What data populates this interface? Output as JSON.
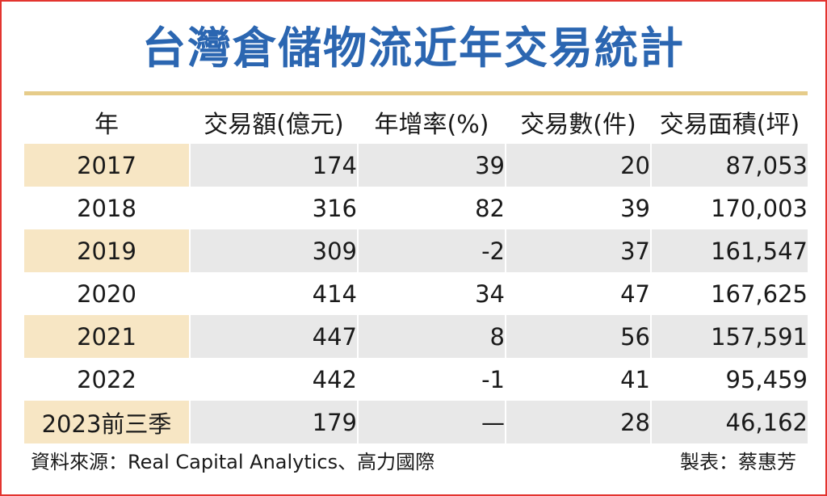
{
  "chart_data": {
    "type": "table",
    "title": "台灣倉儲物流近年交易統計",
    "columns": [
      "年",
      "交易額(億元)",
      "年增率(%)",
      "交易數(件)",
      "交易面積(坪)"
    ],
    "rows": [
      {
        "year": "2017",
        "amount": "174",
        "growth": "39",
        "count": "20",
        "area": "87,053"
      },
      {
        "year": "2018",
        "amount": "316",
        "growth": "82",
        "count": "39",
        "area": "170,003"
      },
      {
        "year": "2019",
        "amount": "309",
        "growth": "-2",
        "count": "37",
        "area": "161,547"
      },
      {
        "year": "2020",
        "amount": "414",
        "growth": "34",
        "count": "47",
        "area": "167,625"
      },
      {
        "year": "2021",
        "amount": "447",
        "growth": "8",
        "count": "56",
        "area": "157,591"
      },
      {
        "year": "2022",
        "amount": "442",
        "growth": "-1",
        "count": "41",
        "area": "95,459"
      },
      {
        "year": "2023前三季",
        "amount": "179",
        "growth": "—",
        "count": "28",
        "area": "46,162"
      }
    ]
  },
  "footer": {
    "source": "資料來源：Real Capital Analytics、高力國際",
    "maker": "製表：蔡惠芳"
  },
  "colors": {
    "title": "#2b66b1",
    "frame": "#e3342f",
    "rule": "#e6cc8a",
    "row_band": "#e8e8e8",
    "year_band": "#f7e6c4"
  }
}
